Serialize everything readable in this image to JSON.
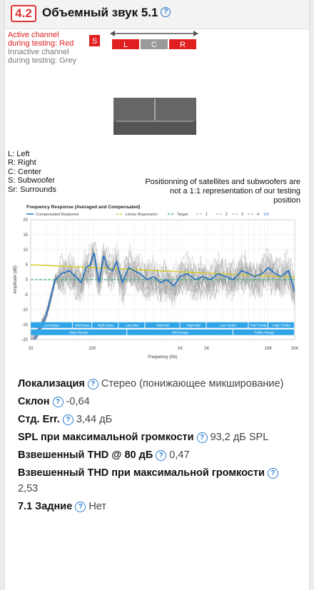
{
  "header": {
    "badge": "4.2",
    "title": "Объемный звук 5.1"
  },
  "diagram": {
    "legend_active": [
      "Active channel",
      "during testing: Red"
    ],
    "legend_inactive": [
      "Innactive channel",
      "during testing: Grey"
    ],
    "sub_label": "S",
    "channels": [
      "L",
      "C",
      "R"
    ],
    "channel_states": [
      "active",
      "inactive",
      "active"
    ],
    "key": [
      "L: Left",
      "R: Right",
      "C: Center",
      "S: Subwoofer",
      "Sr: Surrounds"
    ],
    "note": [
      "Positionning of satellites and subwoofers are",
      "not a 1:1 representation of our testing position"
    ],
    "colors": {
      "active": "#e02020",
      "inactive": "#9a9a9a",
      "couch": "#666666"
    }
  },
  "chart_data": {
    "type": "line",
    "title": "Frequency Response (Averaged and Compensated)",
    "legend": [
      "Compensated Response",
      "Linear Regression",
      "Target",
      "1",
      "2",
      "3",
      "4",
      "1/6"
    ],
    "xlabel": "Frequency (Hz)",
    "ylabel": "Amplitude (dB)",
    "x_scale": "log",
    "xlim": [
      20,
      20000
    ],
    "ylim": [
      -20,
      20
    ],
    "x_ticks": [
      "20",
      "100",
      "1K",
      "2K",
      "10K",
      "20K"
    ],
    "y_ticks": [
      20,
      15,
      10,
      5,
      0,
      -5,
      -10,
      -15,
      -20
    ],
    "series": [
      {
        "name": "Compensated Response",
        "color": "#1f6fc2",
        "x": [
          22,
          30,
          38,
          45,
          55,
          65,
          75,
          85,
          95,
          105,
          120,
          135,
          150,
          170,
          190,
          220,
          260,
          300,
          350,
          420,
          500,
          600,
          700,
          850,
          1000,
          1200,
          1500,
          1800,
          2200,
          2700,
          3300,
          4000,
          5000,
          6000,
          7000,
          8500,
          10000,
          12000,
          14000,
          17000,
          20000
        ],
        "y": [
          -20,
          -12,
          0,
          2,
          3,
          1,
          -1,
          4,
          5,
          9,
          -1,
          8,
          4,
          3,
          6,
          -1,
          4,
          3,
          2,
          0,
          1,
          -1,
          0,
          -2,
          1,
          2,
          0,
          1,
          0,
          2,
          1,
          0,
          3,
          2,
          1,
          2,
          4,
          2,
          1,
          3,
          -4
        ]
      },
      {
        "name": "Linear Regression",
        "color": "#d6cc1e",
        "x": [
          20,
          20000
        ],
        "y": [
          5,
          0.8
        ]
      },
      {
        "name": "Target",
        "color": "#3fb37a",
        "x": [
          20,
          20000
        ],
        "y": [
          0,
          0
        ]
      }
    ],
    "bands_top": [
      "Low-Bass",
      "Mid-Bass",
      "High-Bass",
      "Low-Mid",
      "Mid-Mid",
      "High-Mid",
      "Low-Treble",
      "Mid-Treble",
      "High-Treble"
    ],
    "bands_bottom": [
      "Bass Range",
      "Mid Range",
      "Treble Range"
    ],
    "band_color": "#2fa4e7"
  },
  "props": [
    {
      "label": "Локализация",
      "value": "Стерео (понижающее микширование)"
    },
    {
      "label": "Склон",
      "value": "-0,64"
    },
    {
      "label": "Стд. Err.",
      "value": "3,44 дБ"
    },
    {
      "label": "SPL при максимальной громкости",
      "value": "93,2 дБ SPL"
    },
    {
      "label": "Взвешенный THD @ 80 дБ",
      "value": "0,47"
    },
    {
      "label": "Взвешенный THD при максимальной громкости",
      "value": "2,53"
    },
    {
      "label": "7.1 Задние",
      "value": "Нет"
    }
  ]
}
